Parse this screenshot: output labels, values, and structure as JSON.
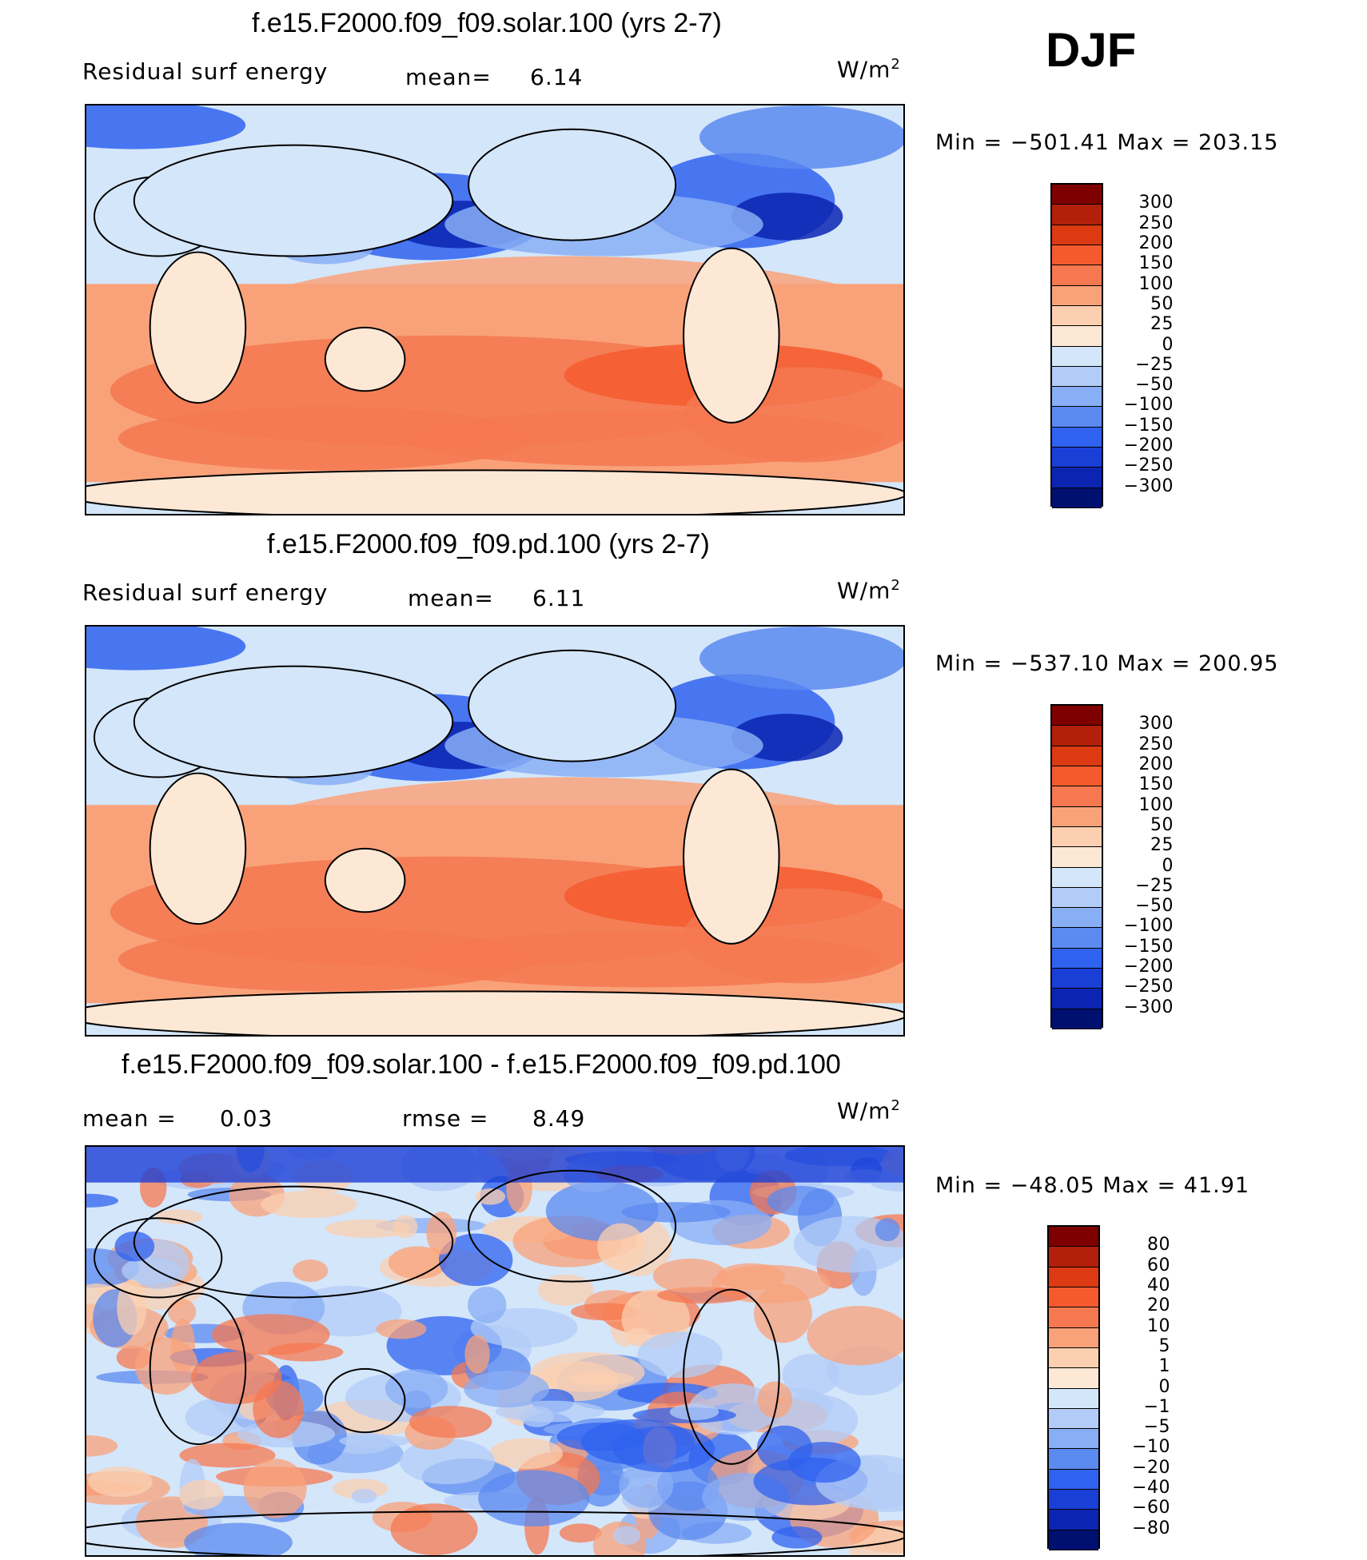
{
  "season": "DJF",
  "panels": [
    {
      "title": "f.e15.F2000.f09_f09.solar.100 (yrs 2-7)",
      "left_label": "Residual surf energy",
      "mid_label": "mean=",
      "mid_value": "6.14",
      "units": "W/m",
      "units_sup": "2",
      "minmax": "Min = −501.41 Max = 203.15"
    },
    {
      "title": "f.e15.F2000.f09_f09.pd.100 (yrs 2-7)",
      "left_label": "Residual surf energy",
      "mid_label": "mean=",
      "mid_value": "6.11",
      "units": "W/m",
      "units_sup": "2",
      "minmax": "Min = −537.10 Max = 200.95"
    },
    {
      "title": "f.e15.F2000.f09_f09.solar.100 - f.e15.F2000.f09_f09.pd.100",
      "left_label": "mean =",
      "left_value": "0.03",
      "mid_label": "rmse =",
      "mid_value": "8.49",
      "units": "W/m",
      "units_sup": "2",
      "minmax": "Min = −48.05 Max =  41.91"
    }
  ],
  "chart_data": [
    {
      "type": "heatmap",
      "title": "f.e15.F2000.f09_f09.solar.100 (yrs 2-7)",
      "variable": "Residual surf energy",
      "units": "W/m2",
      "mean": 6.14,
      "min": -501.41,
      "max": 203.15,
      "levels": [
        "300",
        "250",
        "200",
        "150",
        "100",
        "50",
        "25",
        "0",
        "−25",
        "−50",
        "−100",
        "−150",
        "−200",
        "−250",
        "−300"
      ],
      "colors": [
        "#7f0000",
        "#b2200b",
        "#dc3a12",
        "#f45a2e",
        "#f57850",
        "#f9a27a",
        "#fbcfb0",
        "#fde8d6",
        "#d4e6fa",
        "#b3ccf7",
        "#88aef5",
        "#5b8af0",
        "#2f62ef",
        "#1a3fd6",
        "#0b25b2",
        "#001070"
      ]
    },
    {
      "type": "heatmap",
      "title": "f.e15.F2000.f09_f09.pd.100 (yrs 2-7)",
      "variable": "Residual surf energy",
      "units": "W/m2",
      "mean": 6.11,
      "min": -537.1,
      "max": 200.95,
      "levels": [
        "300",
        "250",
        "200",
        "150",
        "100",
        "50",
        "25",
        "0",
        "−25",
        "−50",
        "−100",
        "−150",
        "−200",
        "−250",
        "−300"
      ],
      "colors": [
        "#7f0000",
        "#b2200b",
        "#dc3a12",
        "#f45a2e",
        "#f57850",
        "#f9a27a",
        "#fbcfb0",
        "#fde8d6",
        "#d4e6fa",
        "#b3ccf7",
        "#88aef5",
        "#5b8af0",
        "#2f62ef",
        "#1a3fd6",
        "#0b25b2",
        "#001070"
      ]
    },
    {
      "type": "heatmap",
      "title": "f.e15.F2000.f09_f09.solar.100 - f.e15.F2000.f09_f09.pd.100",
      "units": "W/m2",
      "mean": 0.03,
      "rmse": 8.49,
      "min": -48.05,
      "max": 41.91,
      "levels": [
        "80",
        "60",
        "40",
        "20",
        "10",
        "5",
        "1",
        "0",
        "−1",
        "−5",
        "−10",
        "−20",
        "−40",
        "−60",
        "−80"
      ],
      "colors": [
        "#7f0000",
        "#b2200b",
        "#dc3a12",
        "#f45a2e",
        "#f57850",
        "#f9a27a",
        "#fbcfb0",
        "#fde8d6",
        "#d4e6fa",
        "#b3ccf7",
        "#88aef5",
        "#5b8af0",
        "#2f62ef",
        "#1a3fd6",
        "#0b25b2",
        "#001070"
      ]
    }
  ]
}
